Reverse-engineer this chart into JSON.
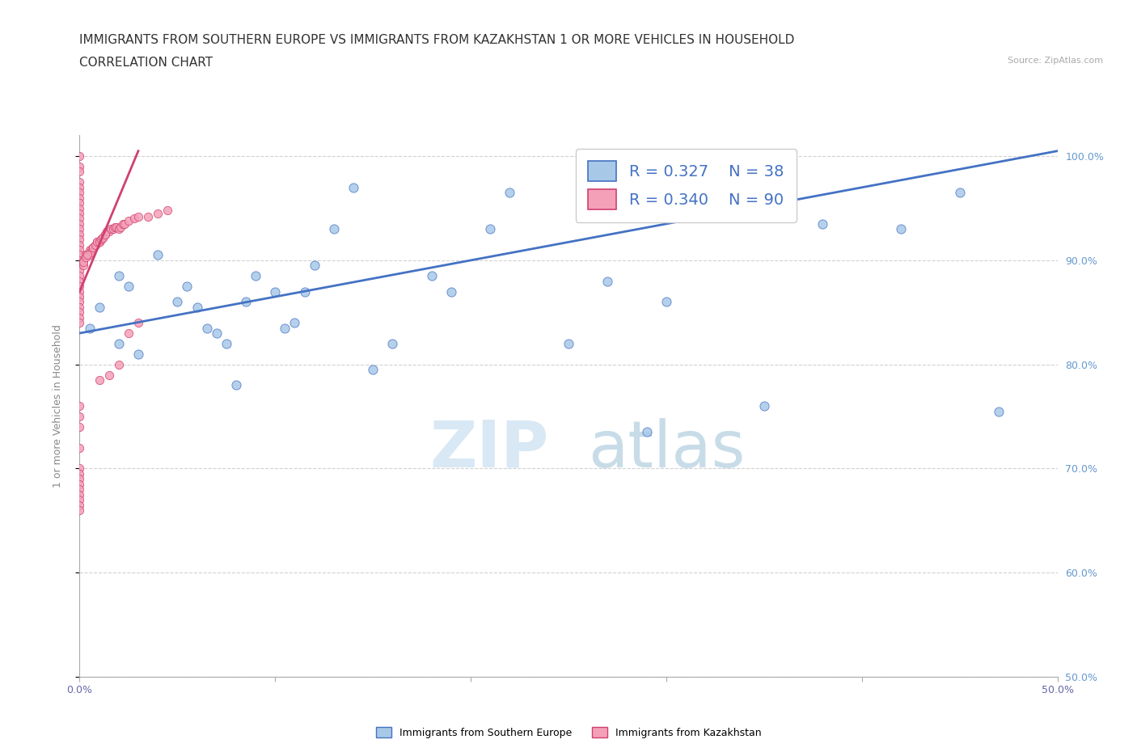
{
  "title_line1": "IMMIGRANTS FROM SOUTHERN EUROPE VS IMMIGRANTS FROM KAZAKHSTAN 1 OR MORE VEHICLES IN HOUSEHOLD",
  "title_line2": "CORRELATION CHART",
  "source_text": "Source: ZipAtlas.com",
  "ylabel_axis": "1 or more Vehicles in Household",
  "watermark_zip": "ZIP",
  "watermark_atlas": "atlas",
  "legend_blue_label": "R = 0.327    N = 38",
  "legend_pink_label": "R = 0.340    N = 90",
  "blue_color": "#a8c8e8",
  "pink_color": "#f4a0b8",
  "trendline_blue_color": "#4472c4",
  "trendline_pink_color": "#d04070",
  "blue_scatter_x": [
    0.005,
    0.01,
    0.02,
    0.025,
    0.04,
    0.05,
    0.055,
    0.06,
    0.065,
    0.07,
    0.075,
    0.085,
    0.09,
    0.1,
    0.105,
    0.11,
    0.115,
    0.12,
    0.13,
    0.14,
    0.15,
    0.16,
    0.18,
    0.19,
    0.21,
    0.22,
    0.25,
    0.27,
    0.3,
    0.35,
    0.38,
    0.42,
    0.45,
    0.47,
    0.02,
    0.03,
    0.08,
    0.29
  ],
  "blue_scatter_y": [
    0.835,
    0.855,
    0.885,
    0.875,
    0.905,
    0.86,
    0.875,
    0.855,
    0.835,
    0.83,
    0.82,
    0.86,
    0.885,
    0.87,
    0.835,
    0.84,
    0.87,
    0.895,
    0.93,
    0.97,
    0.795,
    0.82,
    0.885,
    0.87,
    0.93,
    0.965,
    0.82,
    0.88,
    0.86,
    0.76,
    0.935,
    0.93,
    0.965,
    0.755,
    0.82,
    0.81,
    0.78,
    0.735
  ],
  "pink_scatter_x": [
    0.0,
    0.0,
    0.0,
    0.0,
    0.0,
    0.0,
    0.0,
    0.0,
    0.0,
    0.0,
    0.0,
    0.0,
    0.0,
    0.0,
    0.0,
    0.0,
    0.0,
    0.0,
    0.0,
    0.0,
    0.0,
    0.0,
    0.0,
    0.0,
    0.0,
    0.0,
    0.0,
    0.0,
    0.0,
    0.0,
    0.0,
    0.002,
    0.002,
    0.003,
    0.004,
    0.005,
    0.006,
    0.007,
    0.008,
    0.009,
    0.01,
    0.011,
    0.012,
    0.013,
    0.014,
    0.015,
    0.016,
    0.017,
    0.018,
    0.019,
    0.02,
    0.021,
    0.022,
    0.023,
    0.025,
    0.028,
    0.03,
    0.035,
    0.04,
    0.045,
    0.005,
    0.006,
    0.007,
    0.008,
    0.009,
    0.01,
    0.011,
    0.012,
    0.013,
    0.002,
    0.003,
    0.004,
    0.0,
    0.0,
    0.0,
    0.0,
    0.0,
    0.0,
    0.0,
    0.0,
    0.0,
    0.0,
    0.01,
    0.015,
    0.02,
    0.025,
    0.03,
    0.0,
    0.0,
    0.0
  ],
  "pink_scatter_y": [
    1.0,
    0.99,
    0.985,
    0.975,
    0.97,
    0.965,
    0.96,
    0.955,
    0.95,
    0.945,
    0.94,
    0.935,
    0.93,
    0.925,
    0.92,
    0.915,
    0.91,
    0.905,
    0.9,
    0.895,
    0.89,
    0.885,
    0.88,
    0.875,
    0.87,
    0.865,
    0.86,
    0.855,
    0.85,
    0.845,
    0.84,
    0.9,
    0.895,
    0.905,
    0.905,
    0.91,
    0.91,
    0.912,
    0.915,
    0.918,
    0.918,
    0.92,
    0.922,
    0.925,
    0.928,
    0.928,
    0.93,
    0.93,
    0.932,
    0.932,
    0.93,
    0.932,
    0.935,
    0.935,
    0.938,
    0.94,
    0.942,
    0.942,
    0.945,
    0.948,
    0.905,
    0.908,
    0.912,
    0.915,
    0.918,
    0.918,
    0.92,
    0.922,
    0.925,
    0.898,
    0.903,
    0.905,
    0.7,
    0.695,
    0.69,
    0.685,
    0.68,
    0.675,
    0.67,
    0.665,
    0.66,
    0.72,
    0.785,
    0.79,
    0.8,
    0.83,
    0.84,
    0.76,
    0.75,
    0.74
  ],
  "trendline_blue_x0": 0.0,
  "trendline_blue_y0": 0.83,
  "trendline_blue_x1": 0.5,
  "trendline_blue_y1": 1.005,
  "trendline_pink_x0": 0.0,
  "trendline_pink_y0": 0.87,
  "trendline_pink_x1": 0.03,
  "trendline_pink_y1": 1.005,
  "xlim": [
    0.0,
    0.5
  ],
  "ylim": [
    0.5,
    1.02
  ],
  "xtick_positions": [
    0.0,
    0.1,
    0.2,
    0.3,
    0.4,
    0.5
  ],
  "xtick_labels": [
    "0.0%",
    "",
    "",
    "",
    "",
    "50.0%"
  ],
  "ytick_positions": [
    0.5,
    0.6,
    0.7,
    0.8,
    0.9,
    1.0
  ],
  "ytick_labels_right": [
    "50.0%",
    "60.0%",
    "70.0%",
    "80.0%",
    "90.0%",
    "100.0%"
  ],
  "legend_entry_blue": "Immigrants from Southern Europe",
  "legend_entry_pink": "Immigrants from Kazakhstan",
  "title_fontsize": 11,
  "subtitle_fontsize": 11,
  "label_fontsize": 9,
  "tick_fontsize": 9,
  "background_color": "#ffffff",
  "grid_color": "#cccccc"
}
